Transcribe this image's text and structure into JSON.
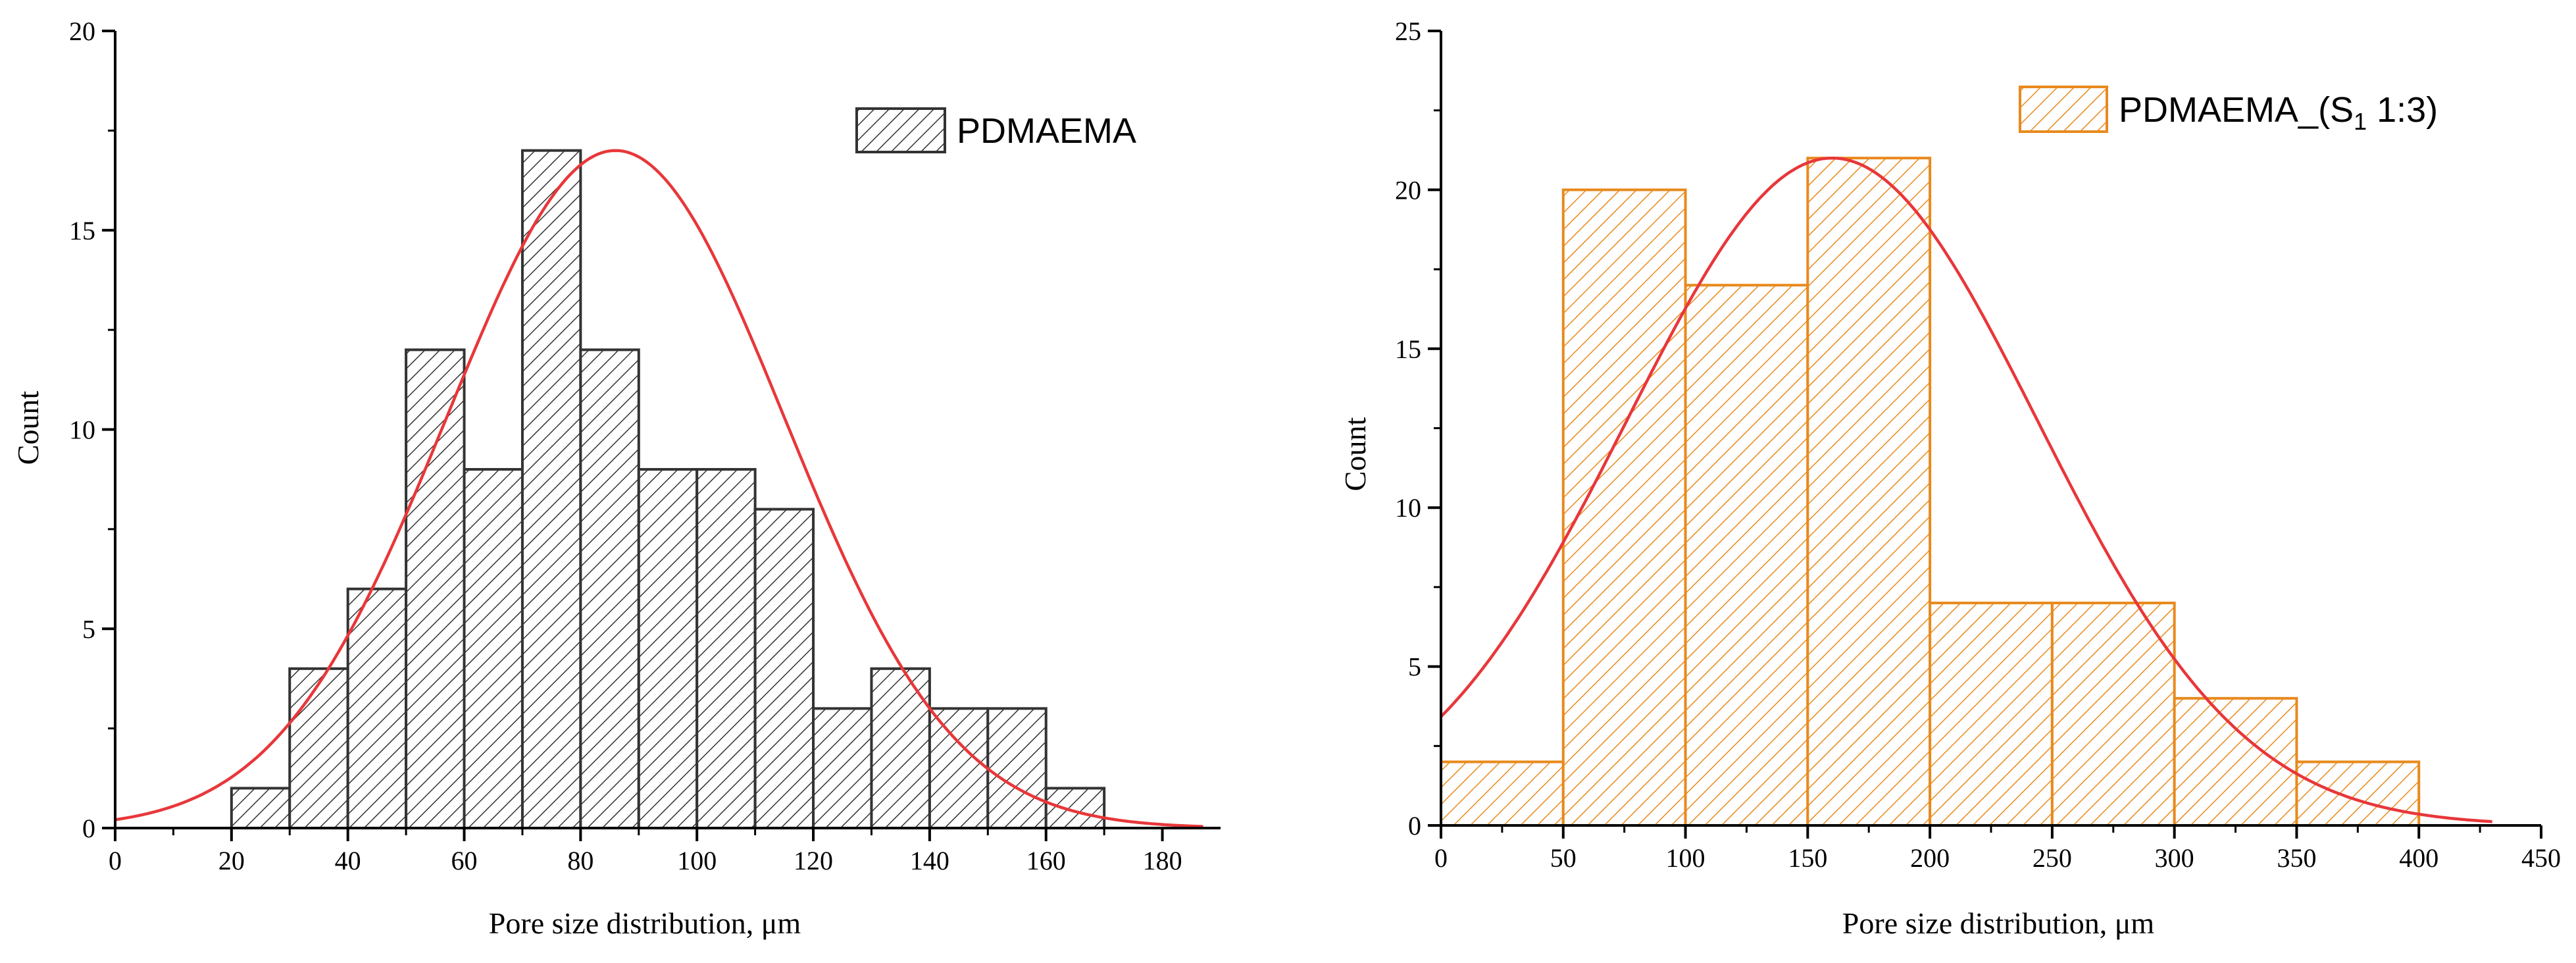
{
  "chart_data": [
    {
      "type": "bar",
      "subtype": "histogram",
      "title": "",
      "xlabel": "Pore size distribution,  μm",
      "ylabel": "Count",
      "xlim": [
        0,
        190
      ],
      "ylim": [
        0,
        20
      ],
      "xticks": [
        0,
        20,
        40,
        60,
        80,
        100,
        120,
        140,
        160,
        180
      ],
      "xtick_labels": [
        "0",
        "20",
        "40",
        "60",
        "80",
        "100",
        "120",
        "140",
        "160",
        "180"
      ],
      "yticks": [
        0,
        5,
        10,
        15,
        20
      ],
      "ytick_labels": [
        "0",
        "5",
        "10",
        "15",
        "20"
      ],
      "bin_width": 10,
      "bin_starts": [
        20,
        30,
        40,
        50,
        60,
        70,
        80,
        90,
        100,
        110,
        120,
        130,
        140,
        150,
        160
      ],
      "values": [
        1,
        4,
        6,
        12,
        9,
        17,
        12,
        9,
        9,
        8,
        3,
        4,
        3,
        3,
        1
      ],
      "fit": {
        "type": "normal",
        "peak": 17,
        "center": 86,
        "sigma": 29,
        "x_range": [
          0,
          187
        ]
      },
      "legend": {
        "label": "PDMAEMA",
        "position": "top-right"
      },
      "colors": {
        "bar_stroke": "#333333",
        "hatch": "#333333",
        "fit": "#e8373a"
      },
      "legend_position": "top-right"
    },
    {
      "type": "bar",
      "subtype": "histogram",
      "title": "",
      "xlabel": "Pore size distribution,  μm",
      "ylabel": "Count",
      "xlim": [
        0,
        450
      ],
      "ylim": [
        0,
        25
      ],
      "xticks": [
        0,
        50,
        100,
        150,
        200,
        250,
        300,
        350,
        400,
        450
      ],
      "xtick_labels": [
        "0",
        "50",
        "100",
        "150",
        "200",
        "250",
        "300",
        "350",
        "400",
        "450"
      ],
      "yticks": [
        0,
        5,
        10,
        15,
        20,
        25
      ],
      "ytick_labels": [
        "0",
        "5",
        "10",
        "15",
        "20",
        "25"
      ],
      "bin_width": 50,
      "bin_starts": [
        0,
        50,
        100,
        150,
        200,
        250,
        300,
        350
      ],
      "values": [
        2,
        20,
        17,
        21,
        7,
        7,
        4,
        2
      ],
      "fit": {
        "type": "normal",
        "peak": 21,
        "center": 160,
        "sigma": 84,
        "x_range": [
          0,
          430
        ]
      },
      "legend": {
        "label_main": "PDMAEMA_(S",
        "label_sub": "1",
        "label_tail": " 1:3)",
        "position": "top-right"
      },
      "colors": {
        "bar_stroke": "#e88a1e",
        "hatch": "#e88a1e",
        "fit": "#e8373a"
      },
      "legend_position": "top-right"
    }
  ]
}
